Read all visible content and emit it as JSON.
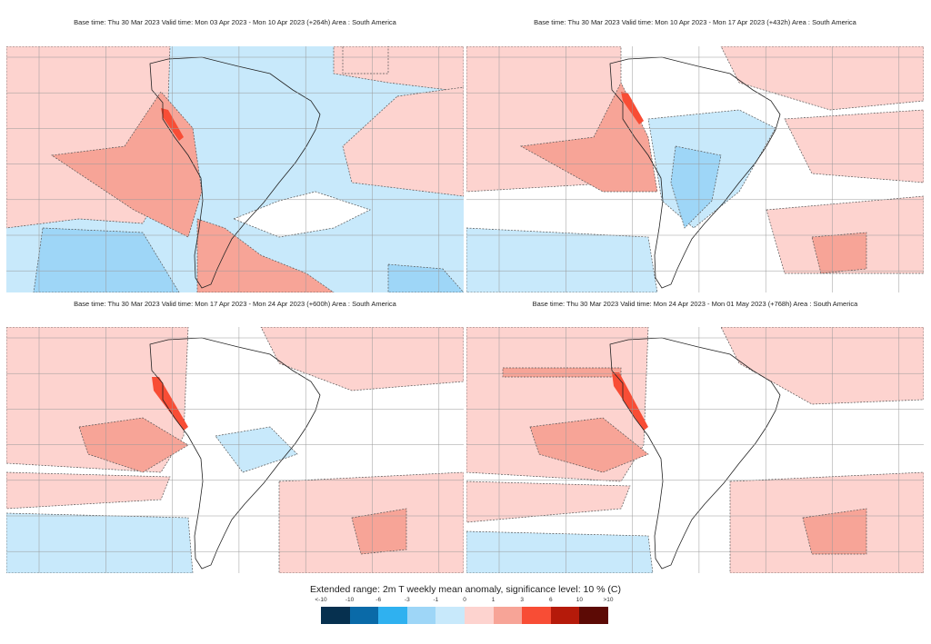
{
  "panels": [
    {
      "title": "Base time: Thu 30 Mar 2023 Valid time: Mon 03 Apr 2023 - Mon 10 Apr 2023 (+264h) Area : South America"
    },
    {
      "title": "Base time: Thu 30 Mar 2023 Valid time: Mon 10 Apr 2023 - Mon 17 Apr 2023 (+432h) Area : South America"
    },
    {
      "title": "Base time: Thu 30 Mar 2023 Valid time: Mon 17 Apr 2023 - Mon 24 Apr 2023 (+600h) Area : South America"
    },
    {
      "title": "Base time: Thu 30 Mar 2023 Valid time: Mon 24 Apr 2023 - Mon 01 May 2023 (+768h) Area : South America"
    }
  ],
  "legend": {
    "title": "Extended range: 2m T weekly mean anomaly, significance level: 10 % (C)",
    "ticks": [
      "<-10",
      "-10",
      "-6",
      "-3",
      "-1",
      "0",
      "1",
      "3",
      "6",
      "10",
      ">10"
    ],
    "colors": [
      "#06304f",
      "#0a6aa8",
      "#2fb1f0",
      "#9ed6f7",
      "#c8e9fb",
      "#fdd3cf",
      "#f7a497",
      "#f84d35",
      "#b51a0a",
      "#5c0a05"
    ]
  }
}
